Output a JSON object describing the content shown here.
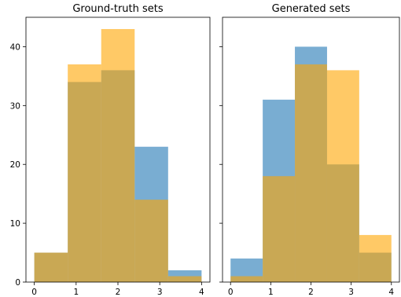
{
  "chart_data": [
    {
      "type": "histogram",
      "title": "Ground-truth sets",
      "xlim": [
        0,
        4
      ],
      "ylim": [
        0,
        45
      ],
      "xticks": [
        0,
        1,
        2,
        3,
        4
      ],
      "yticks": [
        0,
        10,
        20,
        30,
        40
      ],
      "bin_edges": [
        0,
        0.8,
        1.6,
        2.4,
        3.2,
        4.0
      ],
      "series": [
        {
          "color": "#1f77b4",
          "alpha": 0.6,
          "values": [
            5,
            34,
            36,
            23,
            2
          ]
        },
        {
          "color": "#ffa500",
          "alpha": 0.6,
          "values": [
            5,
            37,
            43,
            14,
            1
          ]
        }
      ],
      "grid": false
    },
    {
      "type": "histogram",
      "title": "Generated sets",
      "xlim": [
        0,
        4
      ],
      "ylim": [
        0,
        45
      ],
      "xticks": [
        0,
        1,
        2,
        3,
        4
      ],
      "yticks": [
        0,
        10,
        20,
        30,
        40
      ],
      "ytick_labels_shown": false,
      "bin_edges": [
        0,
        0.8,
        1.6,
        2.4,
        3.2,
        4.0
      ],
      "series": [
        {
          "color": "#1f77b4",
          "alpha": 0.6,
          "values": [
            4,
            31,
            40,
            20,
            5
          ]
        },
        {
          "color": "#ffa500",
          "alpha": 0.6,
          "values": [
            1,
            18,
            37,
            36,
            8
          ]
        }
      ],
      "grid": false
    }
  ]
}
